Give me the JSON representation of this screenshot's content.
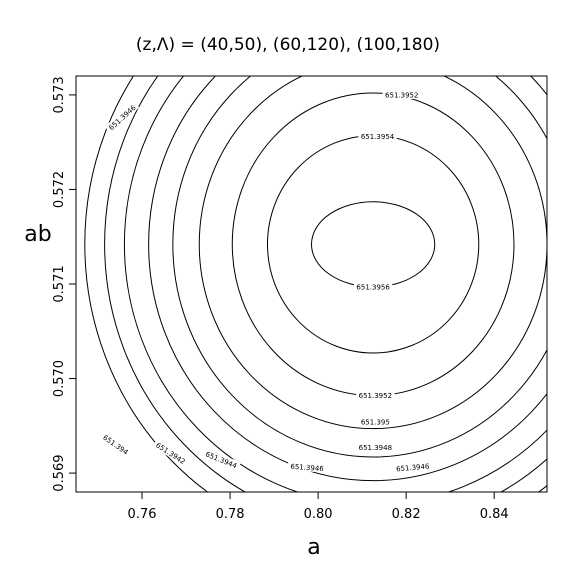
{
  "chart_data": {
    "type": "contour",
    "title": "(z,Λ) = (40,50), (60,120), (100,180)",
    "xlabel": "a",
    "ylabel": "ab",
    "xlim": [
      0.745,
      0.852
    ],
    "ylim": [
      0.5688,
      0.5732
    ],
    "x_ticks": [
      "0.76",
      "0.78",
      "0.80",
      "0.82",
      "0.84"
    ],
    "y_ticks": [
      "0.569",
      "0.570",
      "0.571",
      "0.572",
      "0.573"
    ],
    "center": {
      "x": 0.8125,
      "y": 0.57142
    },
    "grid": false,
    "levels": [
      {
        "value": "651.3956",
        "a": 0.014,
        "b": 0.00045,
        "label_angle": 0
      },
      {
        "value": "651.3954",
        "a": 0.024,
        "b": 0.00115,
        "label_angle": 0
      },
      {
        "value": "651.3952",
        "a": 0.032,
        "b": 0.0016,
        "label_angle": 0
      },
      {
        "value": "651.395",
        "a": 0.0395,
        "b": 0.00195,
        "label_angle": 0
      },
      {
        "value": "651.3948",
        "a": 0.0455,
        "b": 0.00225,
        "label_angle": 0
      },
      {
        "value": "651.3946",
        "a": 0.051,
        "b": 0.0025,
        "label_angle": 0
      },
      {
        "value": "651.3944",
        "a": 0.0565,
        "b": 0.00275,
        "label_angle": 0
      },
      {
        "value": "651.3942",
        "a": 0.061,
        "b": 0.00298,
        "label_angle": 0
      },
      {
        "value": "651.394",
        "a": 0.0655,
        "b": 0.0032,
        "label_angle": 0
      }
    ],
    "contour_labels": [
      {
        "text": "651.3956",
        "x": 0.8125,
        "y": 0.57097,
        "angle": 0
      },
      {
        "text": "651.3954",
        "x": 0.8135,
        "y": 0.57256,
        "angle": 0
      },
      {
        "text": "651.3952",
        "x": 0.813,
        "y": 0.56982,
        "angle": 0
      },
      {
        "text": "651.3952",
        "x": 0.819,
        "y": 0.573,
        "angle": 0
      },
      {
        "text": "651.395",
        "x": 0.813,
        "y": 0.56954,
        "angle": 0
      },
      {
        "text": "651.3948",
        "x": 0.813,
        "y": 0.56927,
        "angle": 0
      },
      {
        "text": "651.3946",
        "x": 0.7975,
        "y": 0.56906,
        "angle": 4
      },
      {
        "text": "651.3946",
        "x": 0.8215,
        "y": 0.56906,
        "angle": -5
      },
      {
        "text": "651.3946",
        "x": 0.7555,
        "y": 0.57276,
        "angle": -42
      },
      {
        "text": "651.3944",
        "x": 0.778,
        "y": 0.56914,
        "angle": 22
      },
      {
        "text": "651.3942",
        "x": 0.7665,
        "y": 0.56921,
        "angle": 33
      },
      {
        "text": "651.394",
        "x": 0.754,
        "y": 0.5693,
        "angle": 35
      }
    ]
  }
}
